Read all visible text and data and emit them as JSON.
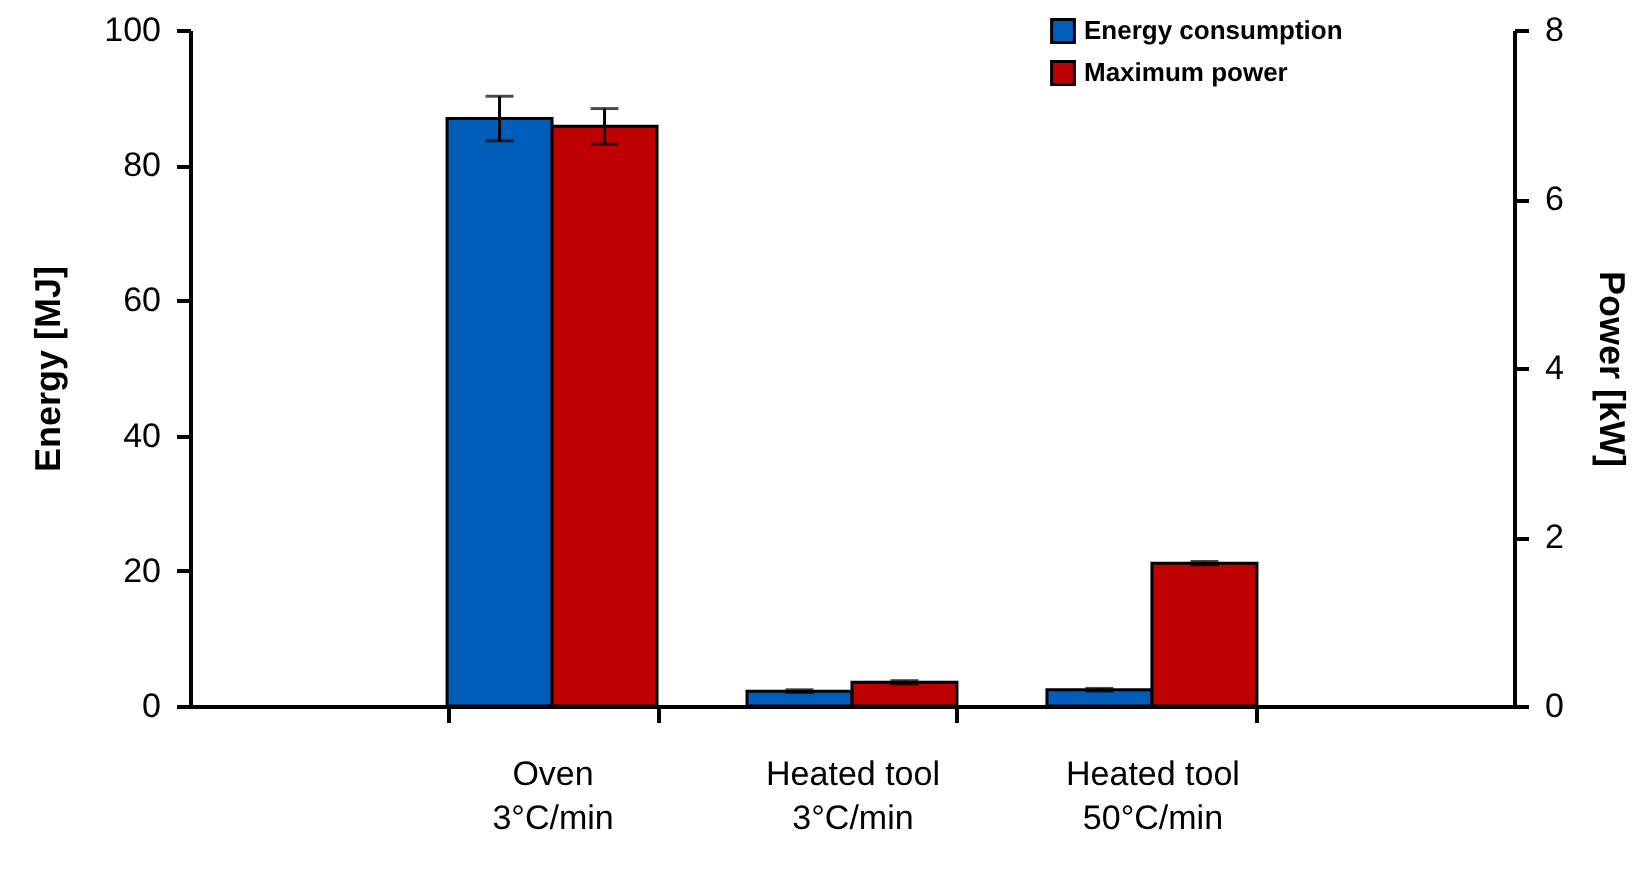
{
  "chart_data": {
    "type": "bar",
    "categories": [
      "Oven 3°C/min",
      "Heated tool 3°C/min",
      "Heated tool 50°C/min"
    ],
    "ylabel": "Energy  [MJ]",
    "y2label": "Power  [kW]",
    "series": [
      {
        "name": "Energy consumption",
        "color": "#005ebb",
        "values": [
          86.9,
          2.2,
          2.4
        ],
        "errors": [
          3.3,
          0.2,
          0.2
        ]
      },
      {
        "name": "Maximum power",
        "color": "#bf0000",
        "axis": "y2",
        "values": [
          6.86,
          0.28,
          1.69
        ],
        "errors": [
          0.21,
          0.02,
          0.02
        ]
      }
    ],
    "ylim": [
      0,
      100
    ],
    "yticks": [
      0,
      20,
      40,
      60,
      80,
      100
    ],
    "y2lim": [
      0,
      8
    ],
    "y2ticks": [
      0,
      2,
      4,
      6,
      8
    ],
    "legend": "top right",
    "grid": false
  }
}
